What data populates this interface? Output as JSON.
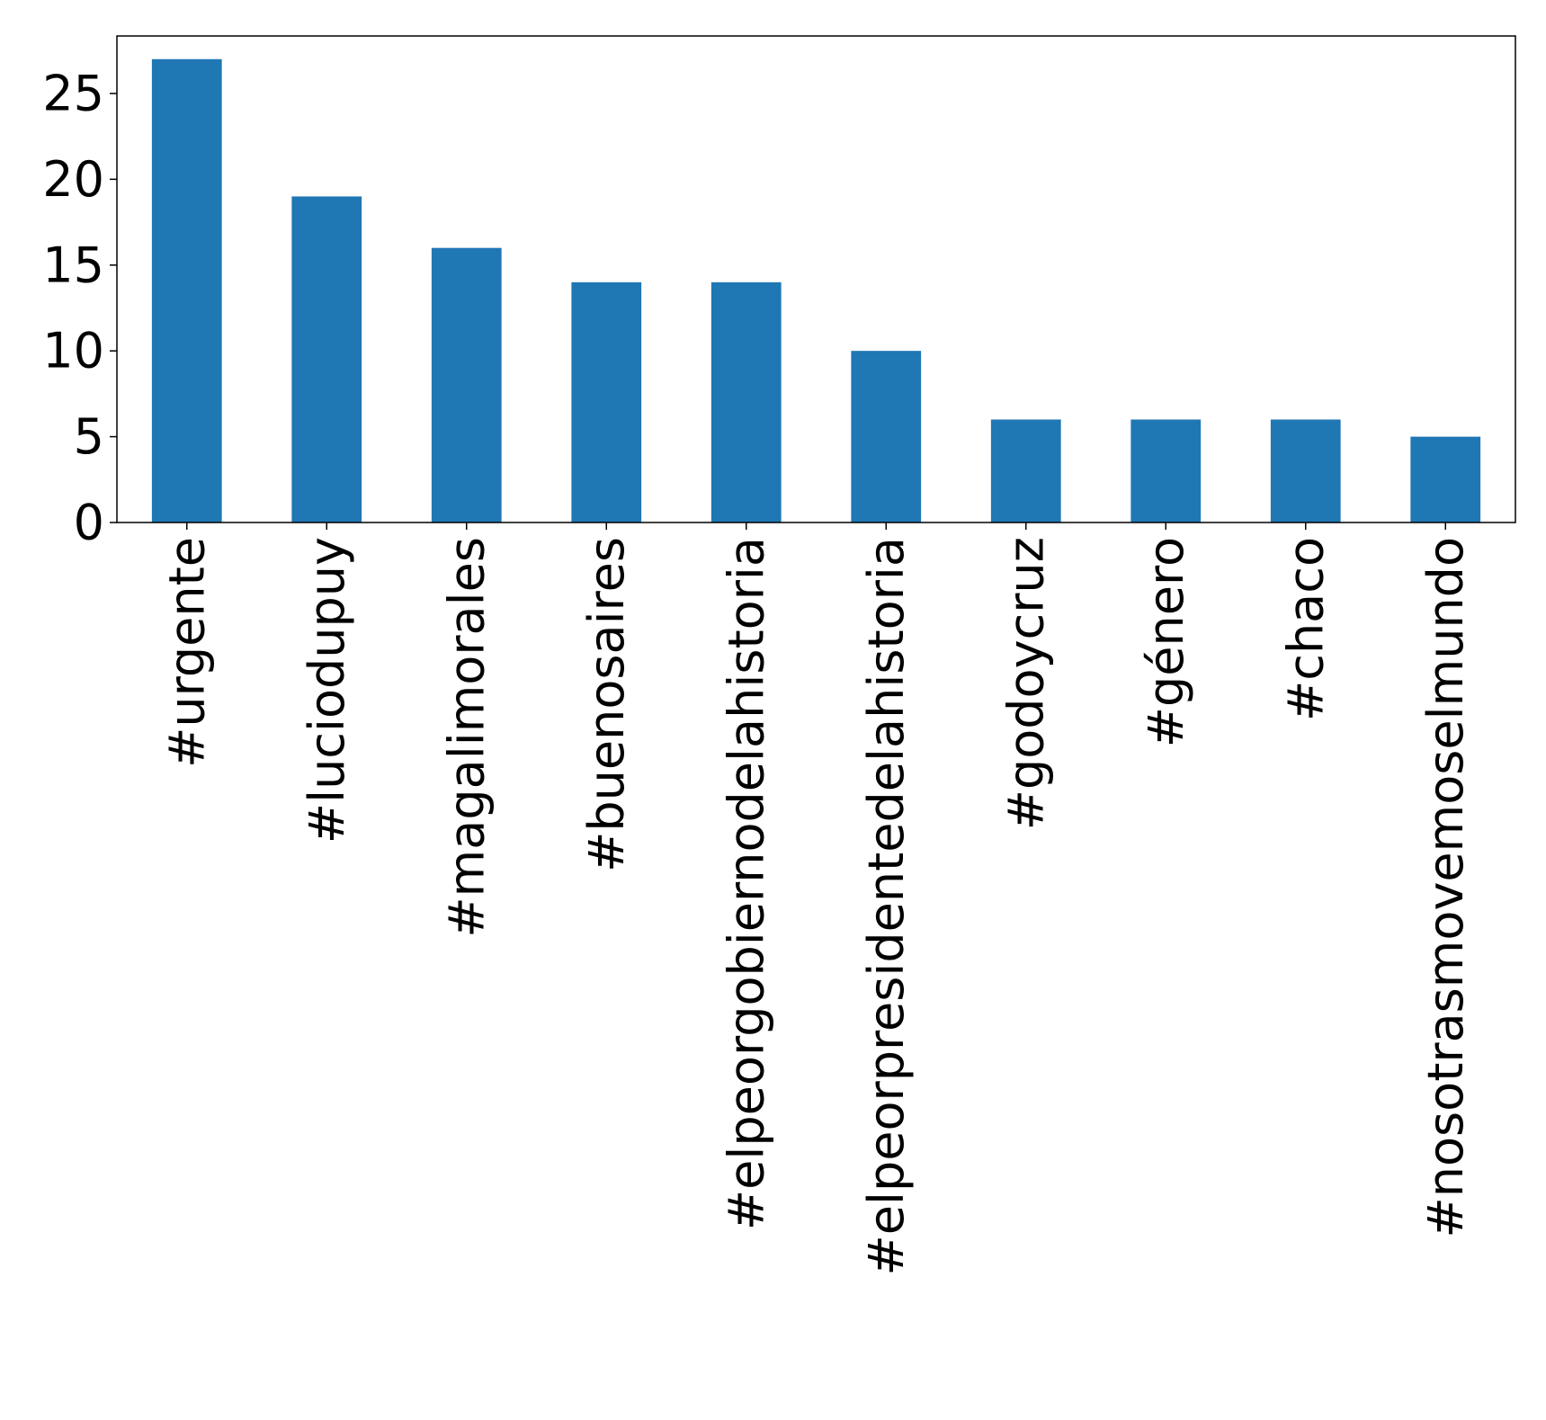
{
  "chart_data": {
    "type": "bar",
    "title": "",
    "xlabel": "",
    "ylabel": "",
    "categories": [
      "#urgente",
      "#luciodupuy",
      "#magalimorales",
      "#buenosaires",
      "#elpeorgobiernodelahistoria",
      "#elpeorpresidentedelahistoria",
      "#godoycruz",
      "#género",
      "#chaco",
      "#nosotrasmovemoselmundo"
    ],
    "values": [
      27,
      19,
      16,
      14,
      14,
      10,
      6,
      6,
      6,
      5
    ],
    "ylim": [
      0,
      28.35
    ],
    "yticks": [
      0,
      5,
      10,
      15,
      20,
      25
    ],
    "grid": false,
    "legend": "none",
    "bar_color": "#1f77b4"
  }
}
